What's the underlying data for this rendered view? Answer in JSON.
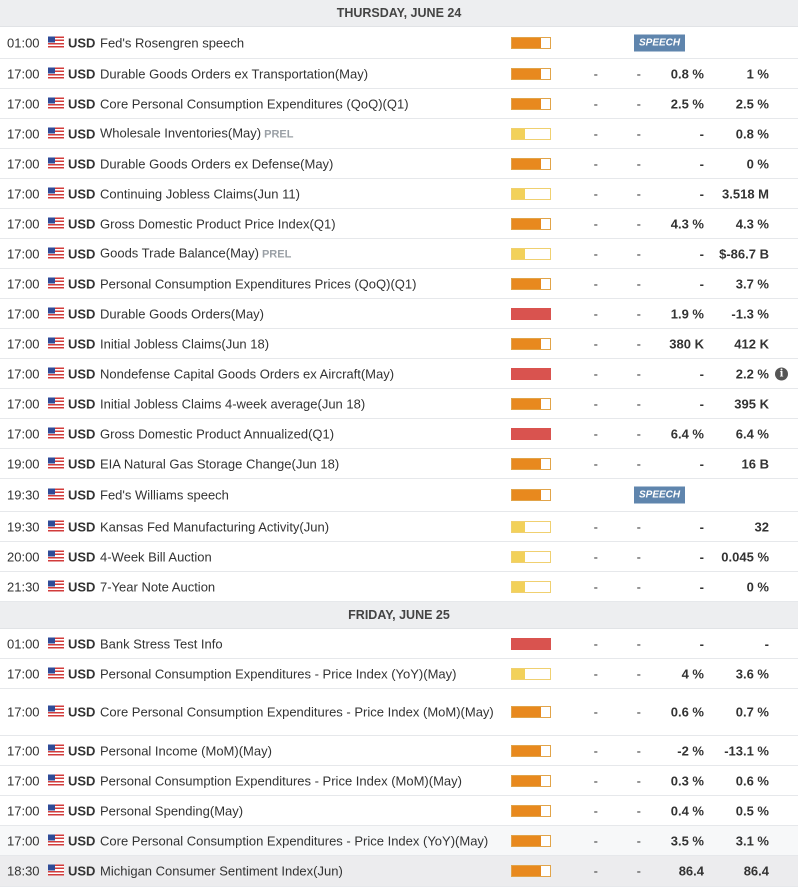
{
  "days": [
    {
      "header": "THURSDAY, JUNE 24",
      "events": [
        {
          "time": "01:00",
          "currency": "USD",
          "name": "Fed's Rosengren speech",
          "tag": "",
          "impact": "medium",
          "impact_level": 0.75,
          "speech": "SPEECH",
          "v1": "",
          "v2": "",
          "v3": "",
          "v4": "",
          "info": false,
          "h": 31,
          "alt": false,
          "hl": false
        },
        {
          "time": "17:00",
          "currency": "USD",
          "name": "Durable Goods Orders ex Transportation(May)",
          "tag": "",
          "impact": "medium",
          "impact_level": 0.75,
          "speech": "",
          "v1": "-",
          "v2": "-",
          "v3": "0.8 %",
          "v4": "1 %",
          "info": false,
          "h": 29,
          "alt": false,
          "hl": false
        },
        {
          "time": "17:00",
          "currency": "USD",
          "name": "Core Personal Consumption Expenditures (QoQ)(Q1)",
          "tag": "",
          "impact": "medium",
          "impact_level": 0.75,
          "speech": "",
          "v1": "-",
          "v2": "-",
          "v3": "2.5 %",
          "v4": "2.5 %",
          "info": false,
          "h": 29,
          "alt": false,
          "hl": false
        },
        {
          "time": "17:00",
          "currency": "USD",
          "name": "Wholesale Inventories(May)",
          "tag": "PREL",
          "impact": "low",
          "impact_level": 0.35,
          "speech": "",
          "v1": "-",
          "v2": "-",
          "v3": "-",
          "v4": "0.8 %",
          "info": false,
          "h": 29,
          "alt": false,
          "hl": false
        },
        {
          "time": "17:00",
          "currency": "USD",
          "name": "Durable Goods Orders ex Defense(May)",
          "tag": "",
          "impact": "medium",
          "impact_level": 0.75,
          "speech": "",
          "v1": "-",
          "v2": "-",
          "v3": "-",
          "v4": "0 %",
          "info": false,
          "h": 29,
          "alt": false,
          "hl": false
        },
        {
          "time": "17:00",
          "currency": "USD",
          "name": "Continuing Jobless Claims(Jun 11)",
          "tag": "",
          "impact": "low",
          "impact_level": 0.35,
          "speech": "",
          "v1": "-",
          "v2": "-",
          "v3": "-",
          "v4": "3.518 M",
          "info": false,
          "h": 29,
          "alt": false,
          "hl": false
        },
        {
          "time": "17:00",
          "currency": "USD",
          "name": "Gross Domestic Product Price Index(Q1)",
          "tag": "",
          "impact": "medium",
          "impact_level": 0.75,
          "speech": "",
          "v1": "-",
          "v2": "-",
          "v3": "4.3 %",
          "v4": "4.3 %",
          "info": false,
          "h": 29,
          "alt": false,
          "hl": false
        },
        {
          "time": "17:00",
          "currency": "USD",
          "name": "Goods Trade Balance(May)",
          "tag": "PREL",
          "impact": "low",
          "impact_level": 0.35,
          "speech": "",
          "v1": "-",
          "v2": "-",
          "v3": "-",
          "v4": "$-86.7 B",
          "info": false,
          "h": 29,
          "alt": false,
          "hl": false
        },
        {
          "time": "17:00",
          "currency": "USD",
          "name": "Personal Consumption Expenditures Prices (QoQ)(Q1)",
          "tag": "",
          "impact": "medium",
          "impact_level": 0.75,
          "speech": "",
          "v1": "-",
          "v2": "-",
          "v3": "-",
          "v4": "3.7 %",
          "info": false,
          "h": 29,
          "alt": false,
          "hl": false
        },
        {
          "time": "17:00",
          "currency": "USD",
          "name": "Durable Goods Orders(May)",
          "tag": "",
          "impact": "high",
          "impact_level": 1,
          "speech": "",
          "v1": "-",
          "v2": "-",
          "v3": "1.9 %",
          "v4": "-1.3 %",
          "info": false,
          "h": 29,
          "alt": false,
          "hl": false
        },
        {
          "time": "17:00",
          "currency": "USD",
          "name": "Initial Jobless Claims(Jun 18)",
          "tag": "",
          "impact": "medium",
          "impact_level": 0.75,
          "speech": "",
          "v1": "-",
          "v2": "-",
          "v3": "380 K",
          "v4": "412 K",
          "info": false,
          "h": 29,
          "alt": false,
          "hl": false
        },
        {
          "time": "17:00",
          "currency": "USD",
          "name": "Nondefense Capital Goods Orders ex Aircraft(May)",
          "tag": "",
          "impact": "high",
          "impact_level": 1,
          "speech": "",
          "v1": "-",
          "v2": "-",
          "v3": "-",
          "v4": "2.2 %",
          "info": true,
          "h": 29,
          "alt": false,
          "hl": false
        },
        {
          "time": "17:00",
          "currency": "USD",
          "name": "Initial Jobless Claims 4-week average(Jun 18)",
          "tag": "",
          "impact": "medium",
          "impact_level": 0.75,
          "speech": "",
          "v1": "-",
          "v2": "-",
          "v3": "-",
          "v4": "395 K",
          "info": false,
          "h": 29,
          "alt": false,
          "hl": false
        },
        {
          "time": "17:00",
          "currency": "USD",
          "name": "Gross Domestic Product Annualized(Q1)",
          "tag": "",
          "impact": "high",
          "impact_level": 1,
          "speech": "",
          "v1": "-",
          "v2": "-",
          "v3": "6.4 %",
          "v4": "6.4 %",
          "info": false,
          "h": 29,
          "alt": false,
          "hl": false
        },
        {
          "time": "19:00",
          "currency": "USD",
          "name": "EIA Natural Gas Storage Change(Jun 18)",
          "tag": "",
          "impact": "medium",
          "impact_level": 0.75,
          "speech": "",
          "v1": "-",
          "v2": "-",
          "v3": "-",
          "v4": "16 B",
          "info": false,
          "h": 29,
          "alt": false,
          "hl": false
        },
        {
          "time": "19:30",
          "currency": "USD",
          "name": "Fed's Williams speech",
          "tag": "",
          "impact": "medium",
          "impact_level": 0.75,
          "speech": "SPEECH",
          "v1": "",
          "v2": "",
          "v3": "",
          "v4": "",
          "info": false,
          "h": 32,
          "alt": false,
          "hl": false
        },
        {
          "time": "19:30",
          "currency": "USD",
          "name": "Kansas Fed Manufacturing Activity(Jun)",
          "tag": "",
          "impact": "low",
          "impact_level": 0.35,
          "speech": "",
          "v1": "-",
          "v2": "-",
          "v3": "-",
          "v4": "32",
          "info": false,
          "h": 29,
          "alt": false,
          "hl": false
        },
        {
          "time": "20:00",
          "currency": "USD",
          "name": "4-Week Bill Auction",
          "tag": "",
          "impact": "low",
          "impact_level": 0.35,
          "speech": "",
          "v1": "-",
          "v2": "-",
          "v3": "-",
          "v4": "0.045 %",
          "info": false,
          "h": 29,
          "alt": false,
          "hl": false
        },
        {
          "time": "21:30",
          "currency": "USD",
          "name": "7-Year Note Auction",
          "tag": "",
          "impact": "low",
          "impact_level": 0.35,
          "speech": "",
          "v1": "-",
          "v2": "-",
          "v3": "-",
          "v4": "0 %",
          "info": false,
          "h": 29,
          "alt": false,
          "hl": false
        }
      ]
    },
    {
      "header": "FRIDAY, JUNE 25",
      "events": [
        {
          "time": "01:00",
          "currency": "USD",
          "name": "Bank Stress Test Info",
          "tag": "",
          "impact": "high",
          "impact_level": 1,
          "speech": "",
          "v1": "-",
          "v2": "-",
          "v3": "-",
          "v4": "-",
          "info": false,
          "h": 29,
          "alt": false,
          "hl": false
        },
        {
          "time": "17:00",
          "currency": "USD",
          "name": "Personal Consumption Expenditures - Price Index (YoY)(May)",
          "tag": "",
          "impact": "low",
          "impact_level": 0.35,
          "speech": "",
          "v1": "-",
          "v2": "-",
          "v3": "4 %",
          "v4": "3.6 %",
          "info": false,
          "h": 29,
          "alt": false,
          "hl": false
        },
        {
          "time": "17:00",
          "currency": "USD",
          "name": "Core Personal Consumption Expenditures - Price Index (MoM)(May)",
          "tag": "",
          "impact": "medium",
          "impact_level": 0.75,
          "speech": "",
          "v1": "-",
          "v2": "-",
          "v3": "0.6 %",
          "v4": "0.7 %",
          "info": false,
          "h": 46,
          "alt": false,
          "hl": false
        },
        {
          "time": "17:00",
          "currency": "USD",
          "name": "Personal Income (MoM)(May)",
          "tag": "",
          "impact": "medium",
          "impact_level": 0.75,
          "speech": "",
          "v1": "-",
          "v2": "-",
          "v3": "-2 %",
          "v4": "-13.1 %",
          "info": false,
          "h": 29,
          "alt": false,
          "hl": false
        },
        {
          "time": "17:00",
          "currency": "USD",
          "name": "Personal Consumption Expenditures - Price Index (MoM)(May)",
          "tag": "",
          "impact": "medium",
          "impact_level": 0.75,
          "speech": "",
          "v1": "-",
          "v2": "-",
          "v3": "0.3 %",
          "v4": "0.6 %",
          "info": false,
          "h": 29,
          "alt": false,
          "hl": false
        },
        {
          "time": "17:00",
          "currency": "USD",
          "name": "Personal Spending(May)",
          "tag": "",
          "impact": "medium",
          "impact_level": 0.75,
          "speech": "",
          "v1": "-",
          "v2": "-",
          "v3": "0.4 %",
          "v4": "0.5 %",
          "info": false,
          "h": 29,
          "alt": false,
          "hl": false
        },
        {
          "time": "17:00",
          "currency": "USD",
          "name": "Core Personal Consumption Expenditures - Price Index (YoY)(May)",
          "tag": "",
          "impact": "medium",
          "impact_level": 0.75,
          "speech": "",
          "v1": "-",
          "v2": "-",
          "v3": "3.5 %",
          "v4": "3.1 %",
          "info": false,
          "h": 29,
          "alt": true,
          "hl": false
        },
        {
          "time": "18:30",
          "currency": "USD",
          "name": "Michigan Consumer Sentiment Index(Jun)",
          "tag": "",
          "impact": "medium",
          "impact_level": 0.75,
          "speech": "",
          "v1": "-",
          "v2": "-",
          "v3": "86.4",
          "v4": "86.4",
          "info": false,
          "h": 30,
          "alt": false,
          "hl": true
        }
      ]
    }
  ]
}
